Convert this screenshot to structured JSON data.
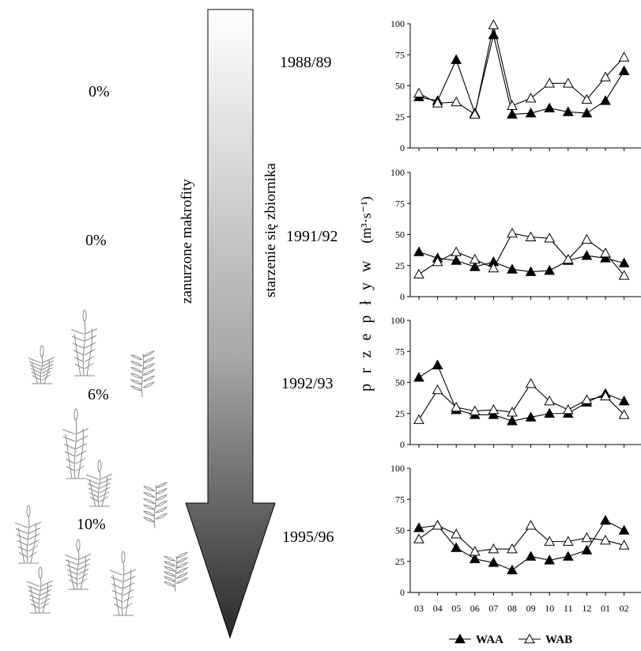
{
  "left_column": {
    "percentages": [
      "0%",
      "0%",
      "6%",
      "10%"
    ]
  },
  "arrow": {
    "left_label": "zanurzone  makrofity",
    "right_label": "starzenie się zbiornika"
  },
  "periods": [
    "1988/89",
    "1991/92",
    "1992/93",
    "1995/96"
  ],
  "colors": {
    "line": "#000000",
    "arrow_top": "#ffffff",
    "arrow_bottom": "#2a2a2a",
    "plant": "#8a8a8a"
  },
  "chart_data": {
    "type": "line",
    "ylabel": "p r z e p ł y w",
    "yunit": "(m³·s⁻¹)",
    "x": [
      "03",
      "04",
      "05",
      "06",
      "07",
      "08",
      "09",
      "10",
      "11",
      "12",
      "01",
      "02"
    ],
    "ylim": [
      0,
      100
    ],
    "yticks": [
      0,
      25,
      50,
      75,
      100
    ],
    "legend": {
      "position": "bottom",
      "entries": [
        "WAA",
        "WAB"
      ]
    },
    "panels": [
      {
        "period": "1988/89",
        "series": [
          {
            "name": "WAA",
            "marker": "filled-triangle",
            "values": [
              41,
              38,
              71,
              28,
              91,
              27,
              28,
              32,
              29,
              28,
              38,
              62
            ]
          },
          {
            "name": "WAB",
            "marker": "open-triangle",
            "values": [
              44,
              36,
              37,
              27,
              99,
              34,
              40,
              52,
              52,
              39,
              57,
              73
            ]
          }
        ]
      },
      {
        "period": "1991/92",
        "series": [
          {
            "name": "WAA",
            "marker": "filled-triangle",
            "values": [
              36,
              31,
              29,
              24,
              28,
              22,
              20,
              21,
              29,
              33,
              31,
              27
            ]
          },
          {
            "name": "WAB",
            "marker": "open-triangle",
            "values": [
              18,
              28,
              36,
              30,
              23,
              51,
              48,
              47,
              30,
              46,
              35,
              17
            ]
          }
        ]
      },
      {
        "period": "1992/93",
        "series": [
          {
            "name": "WAA",
            "marker": "filled-triangle",
            "values": [
              54,
              64,
              28,
              24,
              24,
              19,
              22,
              25,
              25,
              34,
              41,
              35
            ]
          },
          {
            "name": "WAB",
            "marker": "open-triangle",
            "values": [
              20,
              44,
              30,
              27,
              28,
              26,
              49,
              35,
              28,
              36,
              39,
              24
            ]
          }
        ]
      },
      {
        "period": "1995/96",
        "series": [
          {
            "name": "WAA",
            "marker": "filled-triangle",
            "values": [
              52,
              54,
              36,
              27,
              24,
              18,
              29,
              26,
              29,
              34,
              58,
              50
            ]
          },
          {
            "name": "WAB",
            "marker": "open-triangle",
            "values": [
              43,
              54,
              47,
              33,
              35,
              35,
              54,
              41,
              41,
              44,
              42,
              38
            ]
          }
        ]
      }
    ]
  }
}
